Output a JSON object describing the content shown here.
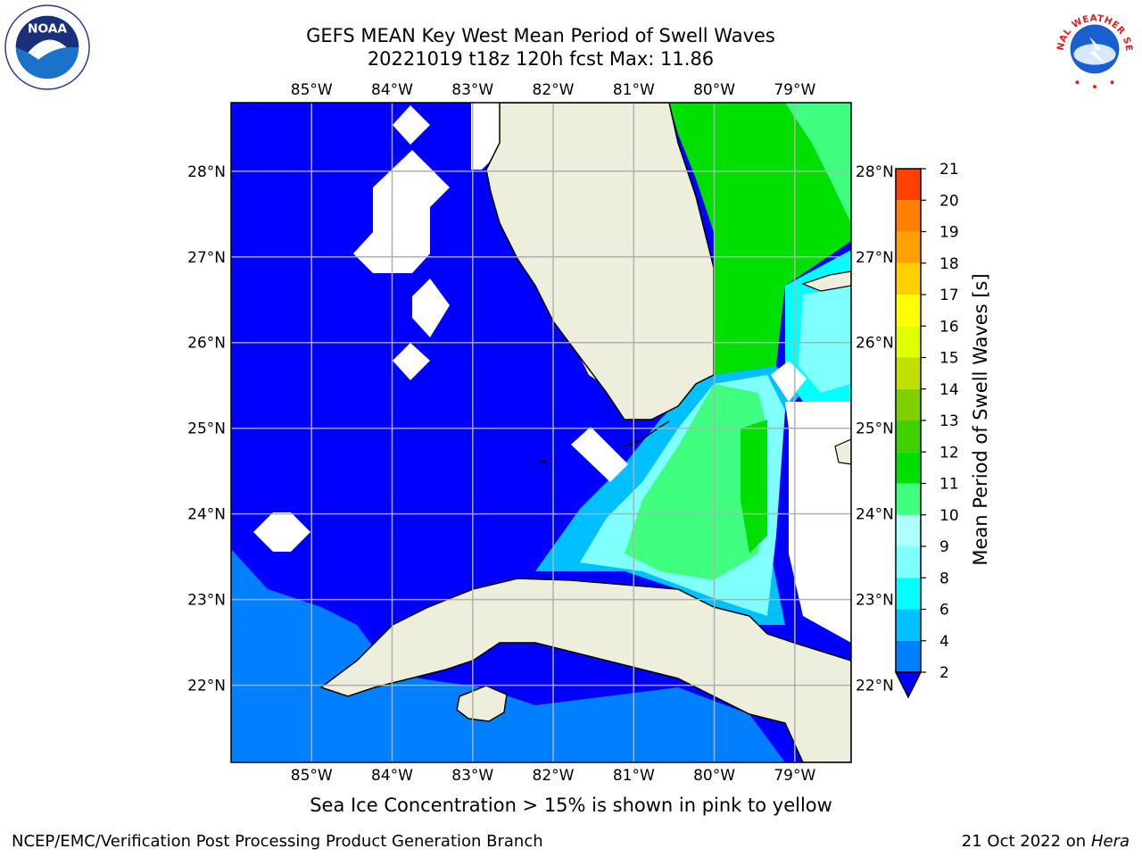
{
  "title": {
    "line1": "GEFS MEAN Key West Mean Period of Swell Waves",
    "line2": "20221019 t18z 120h fcst   Max: 11.86"
  },
  "map": {
    "lon_labels": [
      "85°W",
      "84°W",
      "83°W",
      "82°W",
      "81°W",
      "80°W",
      "79°W"
    ],
    "lat_labels": [
      "28°N",
      "27°N",
      "26°N",
      "25°N",
      "24°N",
      "23°N",
      "22°N"
    ],
    "extent": {
      "lon": [
        -86.0,
        -78.3
      ],
      "lat": [
        21.1,
        28.8
      ]
    },
    "colors": {
      "land": "#eeeedd",
      "water_deep": "#0000ff",
      "coast": "#000000",
      "grid": "#b0b0b0"
    }
  },
  "colorbar": {
    "label": "Mean Period of Swell Waves [s]",
    "ticks": [
      "2",
      "4",
      "6",
      "8",
      "9",
      "10",
      "11",
      "12",
      "13",
      "14",
      "15",
      "16",
      "17",
      "18",
      "19",
      "20",
      "21"
    ],
    "colors": [
      "#0080ff",
      "#00c0ff",
      "#00ffff",
      "#80ffff",
      "#b0ffff",
      "#40ff80",
      "#00e000",
      "#40d000",
      "#80d000",
      "#c0e000",
      "#e0ff00",
      "#ffff00",
      "#ffd000",
      "#ffa000",
      "#ff8000",
      "#ff4000",
      "#ff0000"
    ]
  },
  "caption": "Sea Ice Concentration > 15% is shown in pink to yellow",
  "footer": {
    "left": "NCEP/EMC/Verification Post Processing Product Generation Branch",
    "right_date": "21 Oct 2022 on ",
    "right_host": "Hera"
  },
  "logos": {
    "left": "NOAA",
    "right": "NATIONAL WEATHER SERVICE"
  }
}
